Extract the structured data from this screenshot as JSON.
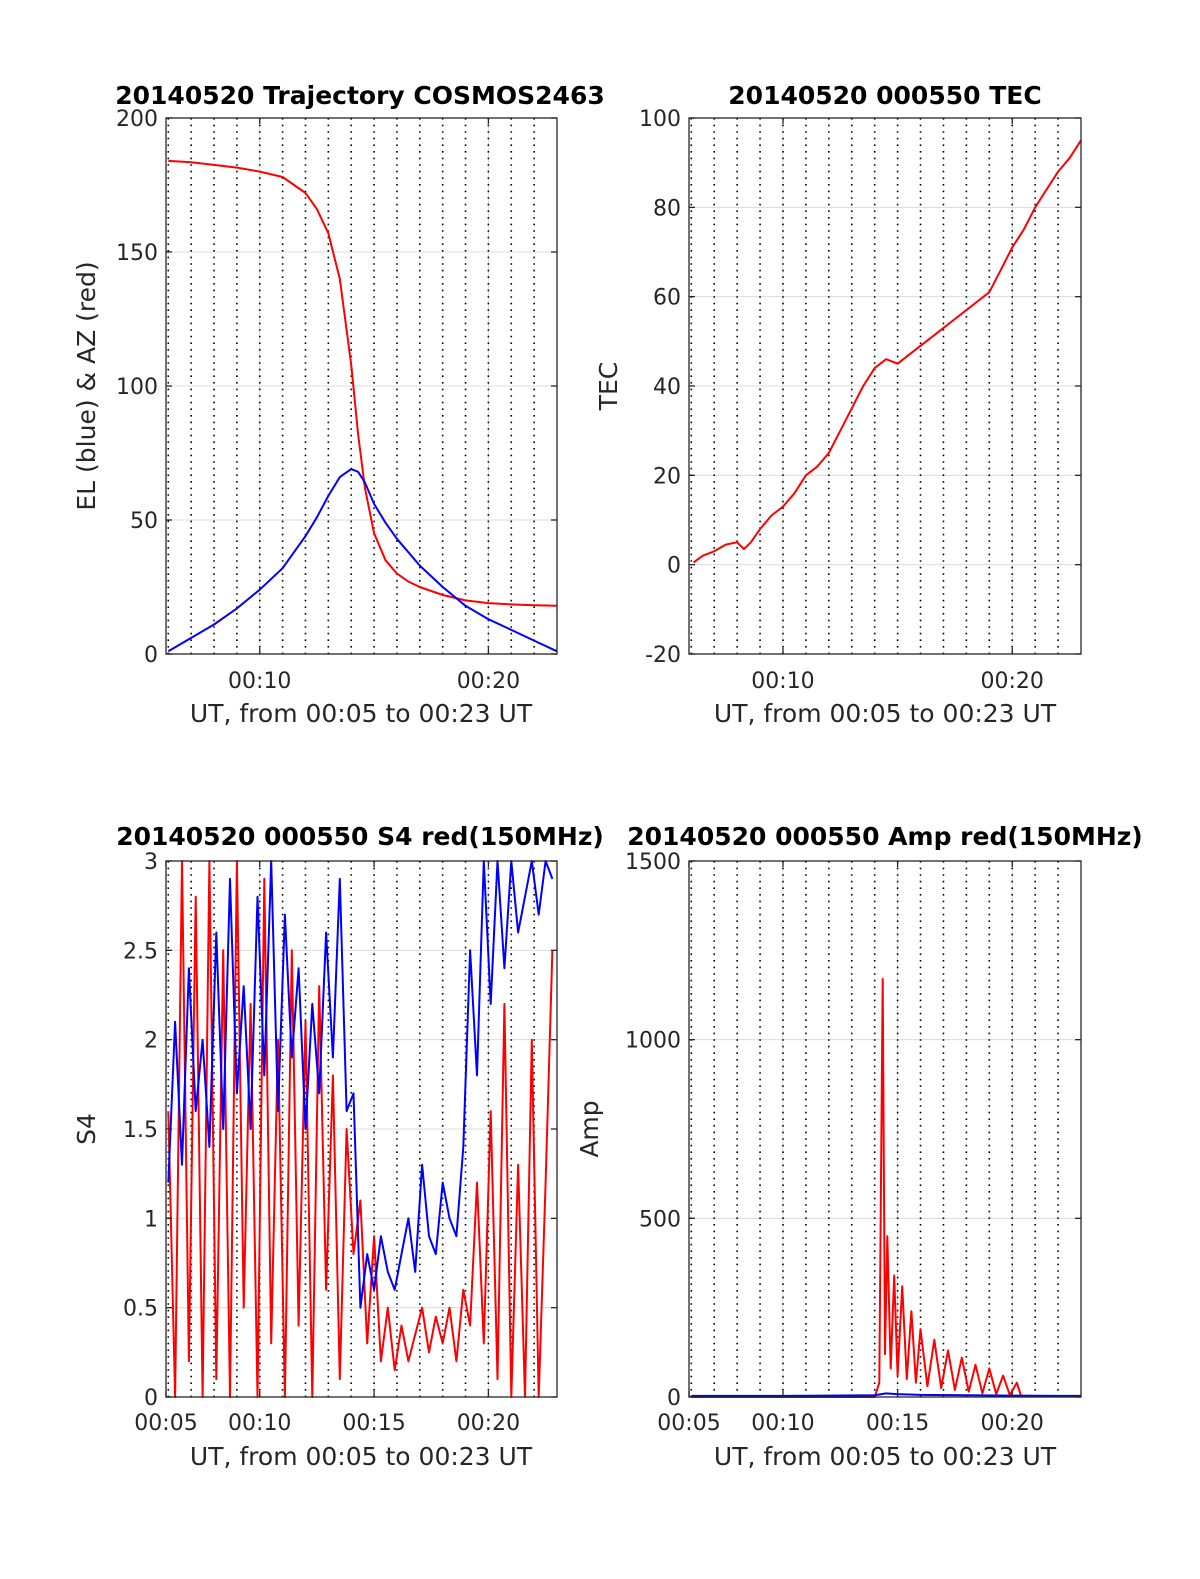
{
  "figure": {
    "background": "#ffffff"
  },
  "colors": {
    "red": "#ff0000",
    "blue": "#0000ff",
    "grid": "#dcdcdc",
    "dotted_grid": "#000000",
    "axes": "#262626"
  },
  "chart_data": [
    {
      "id": "trajectory",
      "type": "line",
      "title": "20140520 Trajectory COSMOS2463",
      "xlabel": "UT, from 00:05 to 00:23 UT",
      "ylabel": "EL (blue) & AZ (red)",
      "xlim": [
        5.9,
        23
      ],
      "ylim": [
        0,
        200
      ],
      "xticks": [
        {
          "v": 10,
          "label": "00:10"
        },
        {
          "v": 20,
          "label": "00:20"
        }
      ],
      "yticks": [
        {
          "v": 0,
          "label": "0"
        },
        {
          "v": 50,
          "label": "50"
        },
        {
          "v": 100,
          "label": "100"
        },
        {
          "v": 150,
          "label": "150"
        },
        {
          "v": 200,
          "label": "200"
        }
      ],
      "series": [
        {
          "color": "red",
          "x": [
            6,
            7,
            8,
            9,
            10,
            11,
            12,
            12.5,
            13,
            13.5,
            14,
            14.3,
            14.6,
            15,
            15.5,
            16,
            16.5,
            17,
            18,
            19,
            20,
            21,
            22,
            23
          ],
          "y": [
            184,
            183.5,
            182.5,
            181.5,
            180,
            178,
            172,
            166,
            157,
            140,
            108,
            82,
            62,
            45,
            35,
            30,
            27,
            25,
            22,
            20,
            19,
            18.5,
            18.2,
            18
          ]
        },
        {
          "color": "blue",
          "x": [
            6,
            7,
            8,
            9,
            10,
            11,
            12,
            12.5,
            13,
            13.5,
            14,
            14.3,
            14.6,
            15,
            15.5,
            16,
            17,
            18,
            19,
            20,
            21,
            22,
            23
          ],
          "y": [
            1,
            6,
            11,
            17,
            24,
            32,
            44,
            51,
            59,
            66,
            69,
            68,
            64,
            56,
            49,
            43,
            33,
            25,
            18,
            13,
            9,
            5,
            1
          ]
        }
      ]
    },
    {
      "id": "tec",
      "type": "line",
      "title": "20140520 000550 TEC",
      "xlabel": "UT, from 00:05 to 00:23 UT",
      "ylabel": "TEC",
      "xlim": [
        5.9,
        23
      ],
      "ylim": [
        -20,
        100
      ],
      "xticks": [
        {
          "v": 10,
          "label": "00:10"
        },
        {
          "v": 20,
          "label": "00:20"
        }
      ],
      "yticks": [
        {
          "v": -20,
          "label": "-20"
        },
        {
          "v": 0,
          "label": "0"
        },
        {
          "v": 20,
          "label": "20"
        },
        {
          "v": 40,
          "label": "40"
        },
        {
          "v": 60,
          "label": "60"
        },
        {
          "v": 80,
          "label": "80"
        },
        {
          "v": 100,
          "label": "100"
        }
      ],
      "series": [
        {
          "color": "red",
          "x": [
            6.1,
            6.5,
            7,
            7.5,
            8,
            8.3,
            8.6,
            9,
            9.5,
            10,
            10.5,
            11,
            11.5,
            12,
            12.5,
            13,
            13.5,
            14,
            14.5,
            15,
            15.5,
            16,
            16.5,
            17,
            17.5,
            18,
            18.5,
            19,
            19.5,
            20,
            20.5,
            21,
            21.5,
            22,
            22.5,
            23
          ],
          "y": [
            0.5,
            2,
            3,
            4.5,
            5,
            3.5,
            5,
            8,
            11,
            13,
            16,
            20,
            22,
            25,
            30,
            35,
            40,
            44,
            46,
            45,
            47,
            49,
            51,
            53,
            55,
            57,
            59,
            61,
            66,
            71,
            75,
            80,
            84,
            88,
            91,
            95
          ]
        }
      ]
    },
    {
      "id": "s4",
      "type": "line",
      "title": "20140520 000550 S4 red(150MHz)",
      "xlabel": "UT, from 00:05 to 00:23 UT",
      "ylabel": "S4",
      "xlim": [
        5.9,
        23
      ],
      "ylim": [
        0,
        3
      ],
      "xticks": [
        {
          "v": 5,
          "label": "00:05"
        },
        {
          "v": 10,
          "label": "00:10"
        },
        {
          "v": 15,
          "label": "00:15"
        },
        {
          "v": 20,
          "label": "00:20"
        }
      ],
      "yticks": [
        {
          "v": 0,
          "label": "0"
        },
        {
          "v": 0.5,
          "label": "0.5"
        },
        {
          "v": 1,
          "label": "1"
        },
        {
          "v": 1.5,
          "label": "1.5"
        },
        {
          "v": 2,
          "label": "2"
        },
        {
          "v": 2.5,
          "label": "2.5"
        },
        {
          "v": 3,
          "label": "3"
        }
      ],
      "series": [
        {
          "color": "red",
          "x": [
            6.0,
            6.3,
            6.6,
            6.9,
            7.2,
            7.5,
            7.8,
            8.1,
            8.4,
            8.7,
            9.0,
            9.3,
            9.6,
            9.9,
            10.2,
            10.5,
            10.8,
            11.1,
            11.4,
            11.7,
            12.0,
            12.3,
            12.6,
            12.9,
            13.2,
            13.5,
            13.8,
            14.1,
            14.4,
            14.7,
            15.0,
            15.3,
            15.6,
            15.9,
            16.2,
            16.5,
            16.8,
            17.1,
            17.4,
            17.7,
            18.0,
            18.3,
            18.6,
            18.9,
            19.2,
            19.5,
            19.8,
            20.1,
            20.4,
            20.7,
            21.0,
            21.3,
            21.6,
            21.9,
            22.2,
            22.5,
            22.8
          ],
          "y": [
            1.6,
            0,
            3,
            0.2,
            2.8,
            0,
            3,
            0.1,
            2.5,
            0,
            3,
            0.5,
            2.2,
            0,
            2.9,
            0.3,
            2.0,
            0,
            2.5,
            0.4,
            2.1,
            0,
            2.3,
            0.6,
            1.8,
            0.1,
            1.5,
            0.8,
            1.1,
            0.3,
            0.9,
            0.2,
            0.5,
            0.15,
            0.4,
            0.2,
            0.35,
            0.5,
            0.25,
            0.45,
            0.3,
            0.5,
            0.2,
            0.6,
            0.4,
            1.2,
            0.3,
            1.6,
            0.1,
            2.2,
            0,
            1.3,
            0,
            2.0,
            0,
            1.2,
            2.5
          ]
        },
        {
          "color": "blue",
          "x": [
            6.0,
            6.3,
            6.6,
            6.9,
            7.2,
            7.5,
            7.8,
            8.1,
            8.4,
            8.7,
            9.0,
            9.3,
            9.6,
            9.9,
            10.2,
            10.5,
            10.8,
            11.1,
            11.4,
            11.7,
            12.0,
            12.3,
            12.6,
            12.9,
            13.2,
            13.5,
            13.8,
            14.1,
            14.4,
            14.7,
            15.0,
            15.3,
            15.6,
            15.9,
            16.2,
            16.5,
            16.8,
            17.1,
            17.4,
            17.7,
            18.0,
            18.3,
            18.6,
            18.9,
            19.2,
            19.5,
            19.8,
            20.1,
            20.4,
            20.7,
            21.0,
            21.3,
            21.6,
            21.9,
            22.2,
            22.5,
            22.8
          ],
          "y": [
            1.2,
            2.1,
            1.3,
            2.4,
            1.6,
            2.0,
            1.4,
            2.6,
            1.5,
            2.9,
            1.7,
            2.3,
            1.5,
            2.8,
            1.8,
            3.0,
            1.6,
            2.7,
            1.9,
            2.4,
            1.5,
            2.2,
            1.7,
            2.6,
            1.9,
            2.9,
            1.6,
            1.7,
            0.5,
            0.8,
            0.6,
            0.9,
            0.7,
            0.6,
            0.8,
            1.0,
            0.7,
            1.3,
            0.9,
            0.8,
            1.2,
            1.0,
            0.9,
            1.4,
            2.5,
            1.8,
            3.0,
            2.2,
            3.0,
            2.4,
            3.0,
            2.6,
            2.8,
            3.0,
            2.7,
            3.0,
            2.9
          ]
        }
      ]
    },
    {
      "id": "amp",
      "type": "line",
      "title": "20140520 000550 Amp red(150MHz)",
      "xlabel": "UT, from 00:05 to 00:23 UT",
      "ylabel": "Amp",
      "xlim": [
        5.9,
        23
      ],
      "ylim": [
        0,
        1500
      ],
      "xticks": [
        {
          "v": 5,
          "label": "00:05"
        },
        {
          "v": 10,
          "label": "00:10"
        },
        {
          "v": 15,
          "label": "00:15"
        },
        {
          "v": 20,
          "label": "00:20"
        }
      ],
      "yticks": [
        {
          "v": 0,
          "label": "0"
        },
        {
          "v": 500,
          "label": "500"
        },
        {
          "v": 1000,
          "label": "1000"
        },
        {
          "v": 1500,
          "label": "1500"
        }
      ],
      "series": [
        {
          "color": "red",
          "x": [
            6,
            10,
            14.0,
            14.2,
            14.35,
            14.45,
            14.55,
            14.7,
            14.85,
            15.0,
            15.2,
            15.4,
            15.6,
            15.8,
            16.0,
            16.3,
            16.6,
            16.9,
            17.2,
            17.5,
            17.8,
            18.1,
            18.4,
            18.7,
            19.0,
            19.3,
            19.6,
            19.9,
            20.2,
            20.4
          ],
          "y": [
            0,
            0,
            0,
            40,
            1170,
            120,
            450,
            80,
            340,
            60,
            310,
            50,
            240,
            40,
            190,
            30,
            160,
            25,
            130,
            20,
            110,
            15,
            90,
            10,
            80,
            8,
            60,
            5,
            40,
            0
          ]
        },
        {
          "color": "blue",
          "x": [
            6,
            8,
            10,
            12,
            14,
            14.5,
            15,
            16,
            18,
            20,
            22,
            23
          ],
          "y": [
            3,
            3,
            3,
            4,
            5,
            10,
            8,
            6,
            5,
            4,
            3,
            3
          ]
        }
      ]
    }
  ]
}
